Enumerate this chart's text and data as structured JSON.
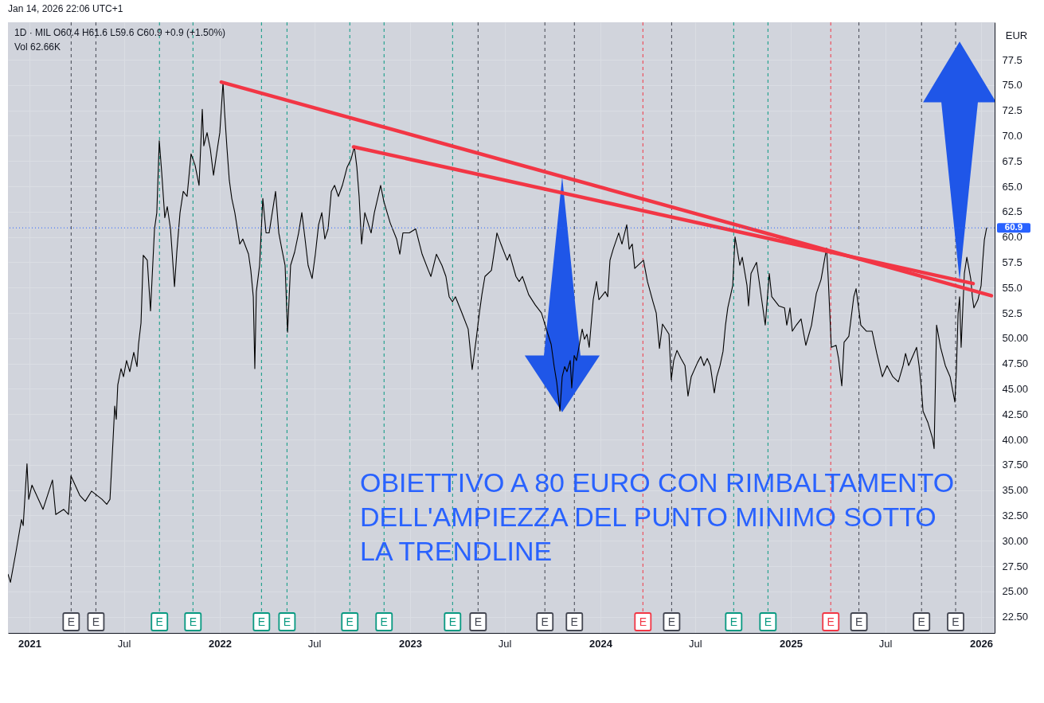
{
  "chart_data": {
    "type": "line",
    "title": "Jan 14, 2026 22:06 UTC+1",
    "subtitle": "1D · MIL  O60.4  H61.6  L59.6  C60.9  +0.9 (+1.50%)",
    "ylabel": "EUR",
    "annotations": [
      "Vol 62.66K",
      "OBIETTIVO A 80 EURO CON RIMBALTAMENTO\nDELL'AMPIEZZA DEL PUNTO MINIMO SOTTO\nLA TRENDLINE"
    ],
    "x": [
      2020.887,
      2020.9,
      2020.929,
      2020.958,
      2020.967,
      2020.987,
      2020.996,
      2021.013,
      2021.071,
      2021.121,
      2021.138,
      2021.18,
      2021.205,
      2021.218,
      2021.264,
      2021.293,
      2021.326,
      2021.381,
      2021.406,
      2021.423,
      2021.439,
      2021.448,
      2021.456,
      2021.464,
      2021.481,
      2021.494,
      2021.51,
      2021.527,
      2021.548,
      2021.565,
      2021.573,
      2021.586,
      2021.598,
      2021.619,
      2021.636,
      2021.657,
      2021.669,
      2021.682,
      2021.695,
      2021.711,
      2021.724,
      2021.741,
      2021.762,
      2021.774,
      2021.791,
      2021.808,
      2021.828,
      2021.849,
      2021.87,
      2021.891,
      2021.908,
      2021.916,
      2021.933,
      2021.95,
      2021.967,
      2021.983,
      2022.0,
      2022.017,
      2022.025,
      2022.038,
      2022.05,
      2022.063,
      2022.079,
      2022.105,
      2022.121,
      2022.151,
      2022.163,
      2022.176,
      2022.184,
      2022.192,
      2022.209,
      2022.226,
      2022.243,
      2022.259,
      2022.293,
      2022.31,
      2022.326,
      2022.343,
      2022.356,
      2022.372,
      2022.393,
      2022.414,
      2022.431,
      2022.448,
      2022.464,
      2022.485,
      2022.502,
      2022.519,
      2022.536,
      2022.552,
      2022.569,
      2022.586,
      2022.603,
      2022.623,
      2022.644,
      2022.669,
      2022.69,
      2022.707,
      2022.72,
      2022.732,
      2022.745,
      2022.762,
      2022.795,
      2022.812,
      2022.845,
      2022.862,
      2022.895,
      2022.929,
      2022.946,
      2022.962,
      2022.996,
      2023.029,
      2023.063,
      2023.096,
      2023.109,
      2023.138,
      2023.167,
      2023.188,
      2023.205,
      2023.222,
      2023.238,
      2023.272,
      2023.305,
      2023.326,
      2023.347,
      2023.364,
      2023.377,
      2023.393,
      2023.427,
      2023.444,
      2023.456,
      2023.477,
      2023.51,
      2023.523,
      2023.556,
      2023.573,
      2023.59,
      2023.623,
      2023.657,
      2023.69,
      2023.724,
      2023.741,
      2023.757,
      2023.77,
      2023.787,
      2023.799,
      2023.812,
      2023.824,
      2023.841,
      2023.849,
      2023.862,
      2023.874,
      2023.904,
      2023.916,
      2023.929,
      2023.941,
      2023.962,
      2023.979,
      2023.992,
      2024.025,
      2024.038,
      2024.05,
      2024.067,
      2024.096,
      2024.113,
      2024.138,
      2024.151,
      2024.167,
      2024.18,
      2024.226,
      2024.247,
      2024.276,
      2024.293,
      2024.31,
      2024.326,
      2024.36,
      2024.372,
      2024.385,
      2024.402,
      2024.423,
      2024.444,
      2024.46,
      2024.477,
      2024.51,
      2024.527,
      2024.544,
      2024.561,
      2024.577,
      2024.598,
      2024.611,
      2024.628,
      2024.644,
      2024.657,
      2024.669,
      2024.695,
      2024.707,
      2024.72,
      2024.732,
      2024.745,
      2024.77,
      2024.778,
      2024.791,
      2024.82,
      2024.845,
      2024.866,
      2024.887,
      2024.9,
      2024.937,
      2024.967,
      2024.979,
      2024.996,
      2025.008,
      2025.029,
      2025.054,
      2025.079,
      2025.109,
      2025.134,
      2025.159,
      2025.188,
      2025.197,
      2025.213,
      2025.238,
      2025.251,
      2025.268,
      2025.28,
      2025.305,
      2025.331,
      2025.343,
      2025.368,
      2025.397,
      2025.427,
      2025.452,
      2025.481,
      2025.506,
      2025.536,
      2025.565,
      2025.59,
      2025.603,
      2025.619,
      2025.661,
      2025.674,
      2025.686,
      2025.695,
      2025.72,
      2025.745,
      2025.753,
      2025.757,
      2025.766,
      2025.787,
      2025.812,
      2025.837,
      2025.862,
      2025.87,
      2025.879,
      2025.887,
      2025.895,
      2025.904,
      2025.912,
      2025.925,
      2025.933,
      2025.946,
      2025.954,
      2025.962,
      2025.983,
      2026.0,
      2026.008,
      2026.017,
      2026.029
    ],
    "series": [
      {
        "color": "#000000",
        "values": [
          26.7,
          25.9,
          28.9,
          32.1,
          31.5,
          37.6,
          34.1,
          35.5,
          33.1,
          36.0,
          32.6,
          33.1,
          32.6,
          36.4,
          34.5,
          33.9,
          34.9,
          34.1,
          33.6,
          34.1,
          39.9,
          43.3,
          42.0,
          45.4,
          47.0,
          46.2,
          47.8,
          46.7,
          48.6,
          47.2,
          49.4,
          51.5,
          58.2,
          57.7,
          52.7,
          60.8,
          62.4,
          69.5,
          66.3,
          61.9,
          63.0,
          60.8,
          55.1,
          58.5,
          62.4,
          64.5,
          64.0,
          68.2,
          67.1,
          65.1,
          72.6,
          69.0,
          70.3,
          68.7,
          66.1,
          68.2,
          70.3,
          75.3,
          72.4,
          68.7,
          65.6,
          63.8,
          62.4,
          59.3,
          59.8,
          58.3,
          56.7,
          54.1,
          47.0,
          54.6,
          57.2,
          63.8,
          60.4,
          60.4,
          64.5,
          60.4,
          58.8,
          57.2,
          50.6,
          57.2,
          58.5,
          60.4,
          62.4,
          59.8,
          57.2,
          55.9,
          58.3,
          61.2,
          62.4,
          59.8,
          60.8,
          64.5,
          65.1,
          64.0,
          65.1,
          66.9,
          67.7,
          68.9,
          66.9,
          64.0,
          59.3,
          62.4,
          60.4,
          62.4,
          65.1,
          63.5,
          61.4,
          59.8,
          58.3,
          60.4,
          60.4,
          60.8,
          58.3,
          56.7,
          56.1,
          58.3,
          57.2,
          56.1,
          54.1,
          53.6,
          54.1,
          52.5,
          50.9,
          46.9,
          49.9,
          52.5,
          54.3,
          56.1,
          56.7,
          58.8,
          60.4,
          59.3,
          57.7,
          58.3,
          56.1,
          55.6,
          56.1,
          54.3,
          53.3,
          52.5,
          50.4,
          49.4,
          47.2,
          45.7,
          42.8,
          46.2,
          47.2,
          46.7,
          47.8,
          45.1,
          48.3,
          47.8,
          50.9,
          49.9,
          50.4,
          49.1,
          53.8,
          55.6,
          53.8,
          54.6,
          54.1,
          57.7,
          58.8,
          60.4,
          59.3,
          61.2,
          58.8,
          59.3,
          56.9,
          57.7,
          55.6,
          53.6,
          52.5,
          49.0,
          51.4,
          50.4,
          45.9,
          47.8,
          48.8,
          48.0,
          47.3,
          44.3,
          46.2,
          47.6,
          48.2,
          47.3,
          48.0,
          47.3,
          44.6,
          46.2,
          47.3,
          48.7,
          51.3,
          53.0,
          55.2,
          60.0,
          58.6,
          57.2,
          58.0,
          55.2,
          53.2,
          56.4,
          57.5,
          54.1,
          51.3,
          56.4,
          54.1,
          53.2,
          53.0,
          51.3,
          53.0,
          50.7,
          51.3,
          51.9,
          49.3,
          51.3,
          54.4,
          55.8,
          58.9,
          55.8,
          49.1,
          49.3,
          48.0,
          45.3,
          49.6,
          50.2,
          54.1,
          54.9,
          51.3,
          50.7,
          50.7,
          48.5,
          46.2,
          47.3,
          46.2,
          45.7,
          47.3,
          48.5,
          47.3,
          49.1,
          47.3,
          45.1,
          42.8,
          41.7,
          40.1,
          39.1,
          42.8,
          51.3,
          49.1,
          47.3,
          46.2,
          43.7,
          46.8,
          52.4,
          54.1,
          49.1,
          53.0,
          56.4,
          58.0,
          57.2,
          55.8,
          54.1,
          53.0,
          53.8,
          55.2,
          57.5,
          59.7,
          60.9
        ]
      },
      {
        "type": "line",
        "color": "#f23645",
        "x": [
          2022.008,
          2026.054
        ],
        "values": [
          75.3,
          54.2
        ]
      },
      {
        "type": "line",
        "color": "#f23645",
        "x": [
          2022.703,
          2025.958
        ],
        "values": [
          68.9,
          55.4
        ]
      }
    ],
    "xlim": [
      2020.887,
      2026.071
    ],
    "ylim": [
      20.9,
      81.2
    ],
    "xticks": [
      {
        "value": 2021,
        "label": "2021"
      },
      {
        "value": 2021.496,
        "label": "Jul"
      },
      {
        "value": 2022,
        "label": "2022"
      },
      {
        "value": 2022.496,
        "label": "Jul"
      },
      {
        "value": 2023,
        "label": "2023"
      },
      {
        "value": 2023.496,
        "label": "Jul"
      },
      {
        "value": 2024,
        "label": "2024"
      },
      {
        "value": 2024.497,
        "label": "Jul"
      },
      {
        "value": 2025,
        "label": "2025"
      },
      {
        "value": 2025.496,
        "label": "Jul"
      },
      {
        "value": 2026,
        "label": "2026"
      }
    ],
    "yticks": [
      {
        "value": 22.5,
        "label": "22.50"
      },
      {
        "value": 25,
        "label": "25.00"
      },
      {
        "value": 27.5,
        "label": "27.50"
      },
      {
        "value": 30,
        "label": "30.00"
      },
      {
        "value": 32.5,
        "label": "32.50"
      },
      {
        "value": 35,
        "label": "35.00"
      },
      {
        "value": 37.5,
        "label": "37.50"
      },
      {
        "value": 40,
        "label": "40.00"
      },
      {
        "value": 42.5,
        "label": "42.50"
      },
      {
        "value": 45,
        "label": "45.00"
      },
      {
        "value": 47.5,
        "label": "47.50"
      },
      {
        "value": 50,
        "label": "50.00"
      },
      52.5,
      {
        "value": 55,
        "label": "55.0"
      },
      57.5,
      {
        "value": 60,
        "label": "60.0"
      },
      62.5,
      {
        "value": 65,
        "label": "65.0"
      },
      67.5,
      {
        "value": 70,
        "label": "70.0"
      },
      72.5,
      {
        "value": 75,
        "label": "75.0"
      },
      77.5
    ],
    "grid": true,
    "ref_lines": [
      {
        "axis": "y",
        "value": 60.9,
        "label": "60.9",
        "color": "#2962ff",
        "line_style": "dotted"
      },
      {
        "axis": "x",
        "value": 2021.219,
        "label": "E",
        "color": "#434651",
        "line_style": "dashed"
      },
      {
        "axis": "x",
        "value": 2021.349,
        "label": "E",
        "color": "#434651",
        "line_style": "dashed"
      },
      {
        "axis": "x",
        "value": 2021.683,
        "label": "E",
        "color": "#089981",
        "line_style": "dashed"
      },
      {
        "axis": "x",
        "value": 2021.859,
        "label": "E",
        "color": "#089981",
        "line_style": "dashed"
      },
      {
        "axis": "x",
        "value": 2022.219,
        "label": "E",
        "color": "#089981",
        "line_style": "dashed"
      },
      {
        "axis": "x",
        "value": 2022.353,
        "label": "E",
        "color": "#089981",
        "line_style": "dashed"
      },
      {
        "axis": "x",
        "value": 2022.683,
        "label": "E",
        "color": "#089981",
        "line_style": "dashed"
      },
      {
        "axis": "x",
        "value": 2022.863,
        "label": "E",
        "color": "#089981",
        "line_style": "dashed"
      },
      {
        "axis": "x",
        "value": 2023.223,
        "label": "E",
        "color": "#089981",
        "line_style": "dashed"
      },
      {
        "axis": "x",
        "value": 2023.357,
        "label": "E",
        "color": "#434651",
        "line_style": "dashed"
      },
      {
        "axis": "x",
        "value": 2023.708,
        "label": "E",
        "color": "#434651",
        "line_style": "dashed"
      },
      {
        "axis": "x",
        "value": 2023.863,
        "label": "E",
        "color": "#434651",
        "line_style": "dashed"
      },
      {
        "axis": "x",
        "value": 2024.223,
        "label": "E",
        "color": "#f23645",
        "line_style": "dashed"
      },
      {
        "axis": "x",
        "value": 2024.374,
        "label": "E",
        "color": "#434651",
        "line_style": "dashed"
      },
      {
        "axis": "x",
        "value": 2024.7,
        "label": "E",
        "color": "#089981",
        "line_style": "dashed"
      },
      {
        "axis": "x",
        "value": 2024.88,
        "label": "E",
        "color": "#089981",
        "line_style": "dashed"
      },
      {
        "axis": "x",
        "value": 2025.21,
        "label": "E",
        "color": "#f23645",
        "line_style": "dashed"
      },
      {
        "axis": "x",
        "value": 2025.358,
        "label": "E",
        "color": "#434651",
        "line_style": "dashed"
      },
      {
        "axis": "x",
        "value": 2025.687,
        "label": "E",
        "color": "#434651",
        "line_style": "dashed"
      },
      {
        "axis": "x",
        "value": 2025.866,
        "label": "E",
        "color": "#434651",
        "line_style": "dashed"
      }
    ]
  }
}
